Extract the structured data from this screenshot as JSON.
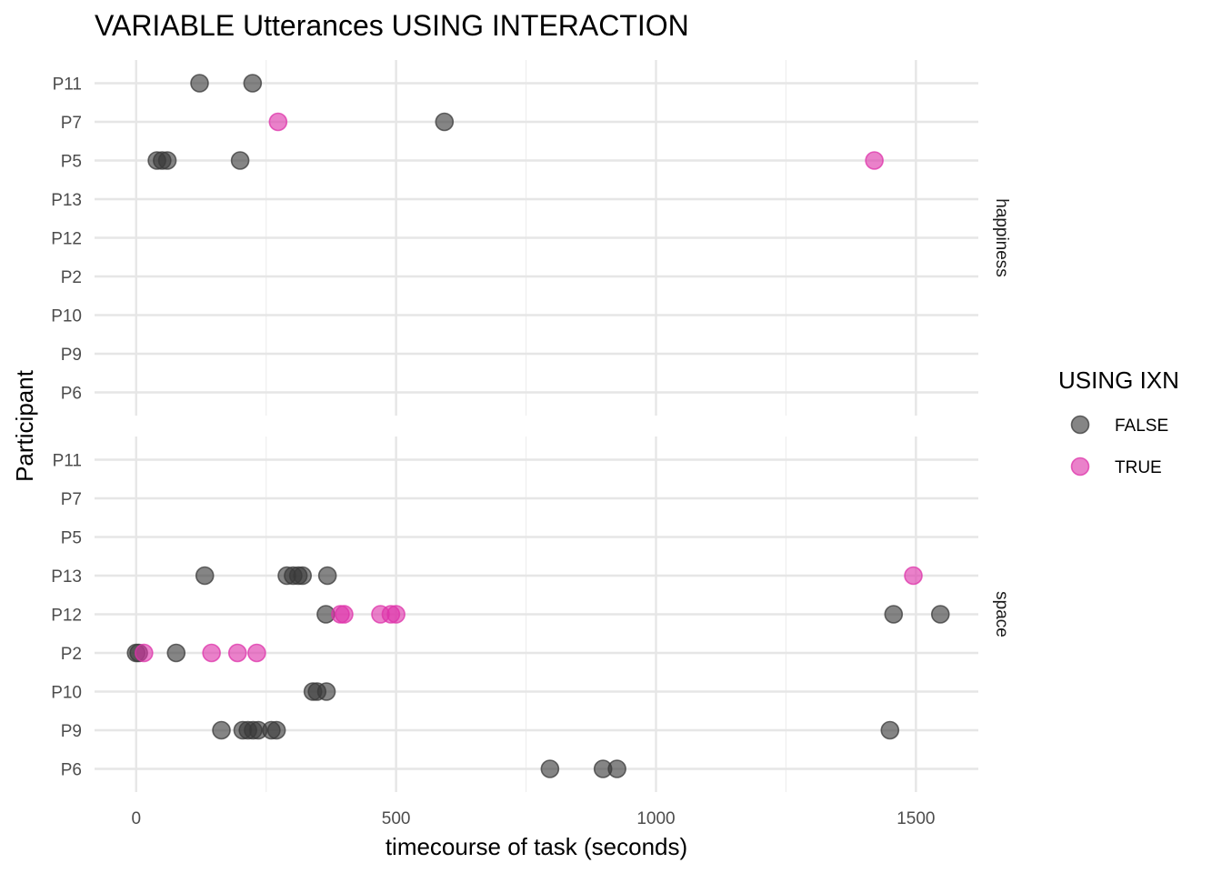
{
  "chart_data": {
    "type": "scatter",
    "title": "VARIABLE Utterances USING INTERACTION",
    "xlabel": "timecourse of task (seconds)",
    "ylabel": "Participant",
    "xlim": [
      -80,
      1620
    ],
    "xticks": [
      0,
      500,
      1000,
      1500
    ],
    "xtick_labels": [
      "0",
      "500",
      "1000",
      "1500"
    ],
    "x_minor_ticks": [
      250,
      750,
      1250
    ],
    "categories": [
      "P11",
      "P7",
      "P5",
      "P13",
      "P12",
      "P2",
      "P10",
      "P9",
      "P6"
    ],
    "grid": true,
    "legend": {
      "title": "USING IXN",
      "position": "right",
      "entries": [
        {
          "label": "FALSE",
          "color": "#3a3a3a"
        },
        {
          "label": "TRUE",
          "color": "#dd33aa"
        }
      ]
    },
    "panels": [
      {
        "label": "happiness",
        "points": [
          {
            "participant": "P11",
            "x": 122,
            "using_ixn": "FALSE"
          },
          {
            "participant": "P11",
            "x": 224,
            "using_ixn": "FALSE"
          },
          {
            "participant": "P7",
            "x": 273,
            "using_ixn": "TRUE"
          },
          {
            "participant": "P7",
            "x": 593,
            "using_ixn": "FALSE"
          },
          {
            "participant": "P5",
            "x": 40,
            "using_ixn": "FALSE"
          },
          {
            "participant": "P5",
            "x": 50,
            "using_ixn": "FALSE"
          },
          {
            "participant": "P5",
            "x": 60,
            "using_ixn": "FALSE"
          },
          {
            "participant": "P5",
            "x": 200,
            "using_ixn": "FALSE"
          },
          {
            "participant": "P5",
            "x": 1420,
            "using_ixn": "TRUE"
          }
        ]
      },
      {
        "label": "space",
        "points": [
          {
            "participant": "P13",
            "x": 132,
            "using_ixn": "FALSE"
          },
          {
            "participant": "P13",
            "x": 290,
            "using_ixn": "FALSE"
          },
          {
            "participant": "P13",
            "x": 302,
            "using_ixn": "FALSE"
          },
          {
            "participant": "P13",
            "x": 312,
            "using_ixn": "FALSE"
          },
          {
            "participant": "P13",
            "x": 320,
            "using_ixn": "FALSE"
          },
          {
            "participant": "P13",
            "x": 368,
            "using_ixn": "FALSE"
          },
          {
            "participant": "P13",
            "x": 1495,
            "using_ixn": "TRUE"
          },
          {
            "participant": "P12",
            "x": 365,
            "using_ixn": "FALSE"
          },
          {
            "participant": "P12",
            "x": 393,
            "using_ixn": "TRUE"
          },
          {
            "participant": "P12",
            "x": 400,
            "using_ixn": "TRUE"
          },
          {
            "participant": "P12",
            "x": 470,
            "using_ixn": "TRUE"
          },
          {
            "participant": "P12",
            "x": 490,
            "using_ixn": "TRUE"
          },
          {
            "participant": "P12",
            "x": 500,
            "using_ixn": "TRUE"
          },
          {
            "participant": "P12",
            "x": 1457,
            "using_ixn": "FALSE"
          },
          {
            "participant": "P12",
            "x": 1547,
            "using_ixn": "FALSE"
          },
          {
            "participant": "P2",
            "x": 0,
            "using_ixn": "FALSE"
          },
          {
            "participant": "P2",
            "x": 5,
            "using_ixn": "FALSE"
          },
          {
            "participant": "P2",
            "x": 15,
            "using_ixn": "TRUE"
          },
          {
            "participant": "P2",
            "x": 77,
            "using_ixn": "FALSE"
          },
          {
            "participant": "P2",
            "x": 145,
            "using_ixn": "TRUE"
          },
          {
            "participant": "P2",
            "x": 195,
            "using_ixn": "TRUE"
          },
          {
            "participant": "P2",
            "x": 232,
            "using_ixn": "TRUE"
          },
          {
            "participant": "P10",
            "x": 340,
            "using_ixn": "FALSE"
          },
          {
            "participant": "P10",
            "x": 348,
            "using_ixn": "FALSE"
          },
          {
            "participant": "P10",
            "x": 366,
            "using_ixn": "FALSE"
          },
          {
            "participant": "P9",
            "x": 164,
            "using_ixn": "FALSE"
          },
          {
            "participant": "P9",
            "x": 205,
            "using_ixn": "FALSE"
          },
          {
            "participant": "P9",
            "x": 215,
            "using_ixn": "FALSE"
          },
          {
            "participant": "P9",
            "x": 225,
            "using_ixn": "FALSE"
          },
          {
            "participant": "P9",
            "x": 235,
            "using_ixn": "FALSE"
          },
          {
            "participant": "P9",
            "x": 260,
            "using_ixn": "FALSE"
          },
          {
            "participant": "P9",
            "x": 270,
            "using_ixn": "FALSE"
          },
          {
            "participant": "P9",
            "x": 1450,
            "using_ixn": "FALSE"
          },
          {
            "participant": "P6",
            "x": 796,
            "using_ixn": "FALSE"
          },
          {
            "participant": "P6",
            "x": 898,
            "using_ixn": "FALSE"
          },
          {
            "participant": "P6",
            "x": 925,
            "using_ixn": "FALSE"
          }
        ]
      }
    ]
  }
}
